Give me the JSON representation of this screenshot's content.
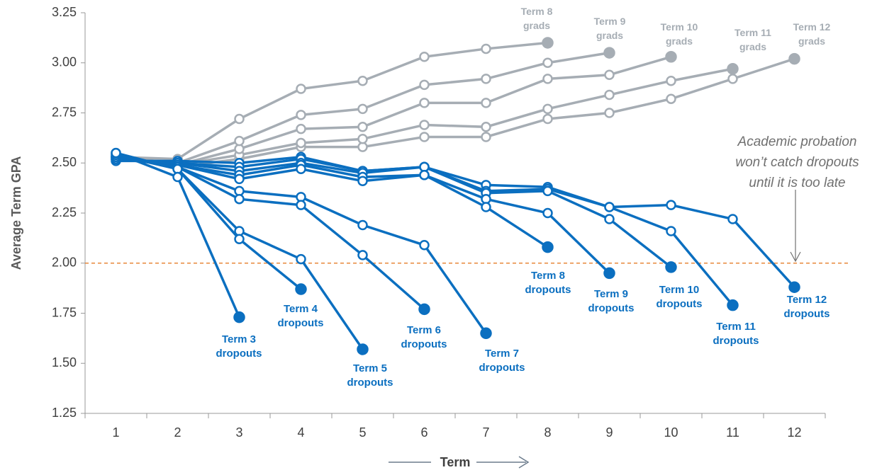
{
  "chart_data": {
    "type": "line",
    "y_label": "Average Term GPA",
    "x_label": "Term",
    "annotation": "Academic probation won’t catch dropouts until it is too late",
    "threshold": 2.0,
    "threshold_color": "#e8883a",
    "categories": [
      "1",
      "2",
      "3",
      "4",
      "5",
      "6",
      "7",
      "8",
      "9",
      "10",
      "11",
      "12"
    ],
    "ylim": [
      1.25,
      3.25
    ],
    "yticks": [
      1.25,
      {
        "value": 1.5,
        "label": "1.50"
      },
      1.75,
      {
        "value": 2.0,
        "label": "2.00"
      },
      2.25,
      {
        "value": 2.5,
        "label": "2.50"
      },
      2.75,
      {
        "value": 3.0,
        "label": "3.00"
      },
      3.25
    ],
    "series": [
      {
        "name": "Term 3 dropouts",
        "color": "#0b6fc0",
        "values": [
          2.55,
          2.43,
          1.73,
          null,
          null,
          null,
          null,
          null,
          null,
          null,
          null,
          null
        ]
      },
      {
        "name": "Term 4 dropouts",
        "color": "#0b6fc0",
        "values": [
          2.55,
          2.47,
          2.12,
          1.87,
          null,
          null,
          null,
          null,
          null,
          null,
          null,
          null
        ]
      },
      {
        "name": "Term 5 dropouts",
        "color": "#0b6fc0",
        "values": [
          2.54,
          2.47,
          2.16,
          2.02,
          1.57,
          null,
          null,
          null,
          null,
          null,
          null,
          null
        ]
      },
      {
        "name": "Term 6 dropouts",
        "color": "#0b6fc0",
        "values": [
          2.53,
          2.48,
          2.32,
          2.29,
          2.04,
          1.77,
          null,
          null,
          null,
          null,
          null,
          null
        ]
      },
      {
        "name": "Term 7 dropouts",
        "color": "#0b6fc0",
        "values": [
          2.53,
          2.48,
          2.36,
          2.33,
          2.19,
          2.09,
          1.65,
          null,
          null,
          null,
          null,
          null
        ]
      },
      {
        "name": "Term 8 dropouts",
        "color": "#0b6fc0",
        "values": [
          2.53,
          2.49,
          2.42,
          2.47,
          2.41,
          2.44,
          2.28,
          2.08,
          null,
          null,
          null,
          null
        ]
      },
      {
        "name": "Term 9 dropouts",
        "color": "#0b6fc0",
        "values": [
          2.52,
          2.49,
          2.44,
          2.49,
          2.43,
          2.44,
          2.32,
          2.25,
          1.95,
          null,
          null,
          null
        ]
      },
      {
        "name": "Term 10 dropouts",
        "color": "#0b6fc0",
        "values": [
          2.52,
          2.5,
          2.46,
          2.5,
          2.45,
          2.48,
          2.35,
          2.36,
          2.22,
          1.98,
          null,
          null
        ]
      },
      {
        "name": "Term 11 dropouts",
        "color": "#0b6fc0",
        "values": [
          2.52,
          2.5,
          2.48,
          2.52,
          2.46,
          2.48,
          2.36,
          2.37,
          2.28,
          2.16,
          1.79,
          null
        ]
      },
      {
        "name": "Term 12 dropouts",
        "color": "#0b6fc0",
        "values": [
          2.51,
          2.51,
          2.5,
          2.53,
          2.46,
          2.48,
          2.39,
          2.38,
          2.28,
          2.29,
          2.22,
          1.88
        ]
      },
      {
        "name": "Term 8 grads",
        "color": "#a6adb4",
        "values": [
          2.53,
          2.52,
          2.72,
          2.87,
          2.91,
          3.03,
          3.07,
          3.1,
          null,
          null,
          null,
          null
        ]
      },
      {
        "name": "Term 9 grads",
        "color": "#a6adb4",
        "values": [
          2.53,
          2.5,
          2.61,
          2.74,
          2.77,
          2.89,
          2.92,
          3.0,
          3.05,
          null,
          null,
          null
        ]
      },
      {
        "name": "Term 10 grads",
        "color": "#a6adb4",
        "values": [
          2.53,
          2.49,
          2.57,
          2.67,
          2.68,
          2.8,
          2.8,
          2.92,
          2.94,
          3.03,
          null,
          null
        ]
      },
      {
        "name": "Term 11 grads",
        "color": "#a6adb4",
        "values": [
          2.54,
          2.49,
          2.54,
          2.6,
          2.62,
          2.69,
          2.68,
          2.77,
          2.84,
          2.91,
          2.97,
          null
        ]
      },
      {
        "name": "Term 12 grads",
        "color": "#a6adb4",
        "values": [
          2.54,
          2.48,
          2.52,
          2.58,
          2.58,
          2.63,
          2.63,
          2.72,
          2.75,
          2.82,
          2.92,
          3.02
        ]
      }
    ]
  }
}
